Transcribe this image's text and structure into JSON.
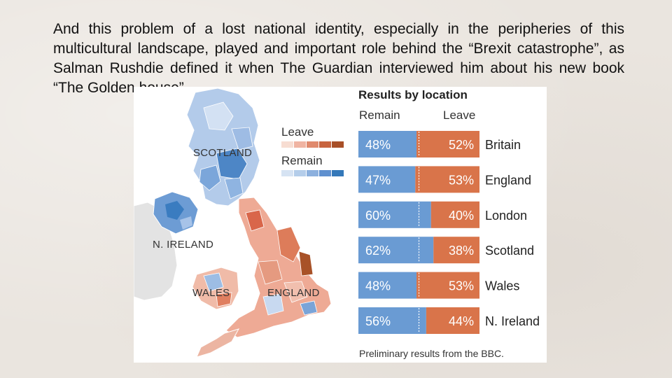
{
  "slide": {
    "text": "And this problem of a lost national identity, especially in the peripheries of this multicultural landscape, played and important role behind the “Brexit catastrophe”, as Salman Rushdie defined it when The Guardian interviewed him about his new book “The Golden house”."
  },
  "figure": {
    "panel_title": "Results by location",
    "remain_header": "Remain",
    "leave_header": "Leave",
    "source": "Preliminary results from the BBC.",
    "legend": {
      "leave_label": "Leave",
      "remain_label": "Remain",
      "leave_colors": [
        "#f7ddd2",
        "#f0b4a2",
        "#e08a6d",
        "#c8643f",
        "#a84f27"
      ],
      "remain_colors": [
        "#d6e3f3",
        "#b4cdea",
        "#8cb0de",
        "#5f90cf",
        "#3478b9"
      ]
    },
    "map_labels": {
      "scotland": "SCOTLAND",
      "n_ireland": "N. IRELAND",
      "wales": "WALES",
      "england": "ENGLAND"
    }
  },
  "chart_data": {
    "type": "bar",
    "orientation": "horizontal",
    "stacked": true,
    "categories": [
      "Britain",
      "England",
      "London",
      "Scotland",
      "Wales",
      "N. Ireland"
    ],
    "series": [
      {
        "name": "Remain",
        "values": [
          48,
          47,
          60,
          62,
          48,
          56
        ],
        "labels": [
          "48%",
          "47%",
          "60%",
          "62%",
          "48%",
          "56%"
        ],
        "color": "#6a9bd3"
      },
      {
        "name": "Leave",
        "values": [
          52,
          53,
          40,
          38,
          53,
          44
        ],
        "labels": [
          "52%",
          "53%",
          "40%",
          "38%",
          "53%",
          "44%"
        ],
        "color": "#d9744a"
      }
    ],
    "reference_line": 50,
    "xlim": [
      0,
      100
    ]
  }
}
